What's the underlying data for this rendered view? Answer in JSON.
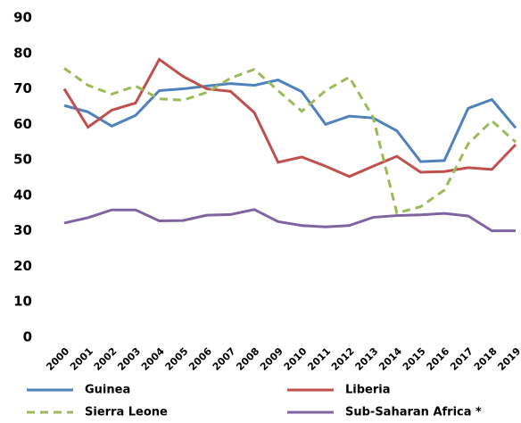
{
  "chart_data": {
    "type": "line",
    "categories": [
      "2000",
      "2001",
      "2002",
      "2003",
      "2004",
      "2005",
      "2006",
      "2007",
      "2008",
      "2009",
      "2010",
      "2011",
      "2012",
      "2013",
      "2014",
      "2015",
      "2016",
      "2017",
      "2018",
      "2019"
    ],
    "series": [
      {
        "name": "Guinea",
        "color": "#4f81bd",
        "dashed": false,
        "values": [
          65.3,
          63.5,
          59.5,
          62.5,
          69.5,
          70,
          70.8,
          71.5,
          71,
          72.5,
          69.2,
          60,
          62.3,
          61.8,
          58.2,
          49.5,
          49.8,
          64.5,
          67,
          59
        ]
      },
      {
        "name": "Liberia",
        "color": "#c0504d",
        "dashed": false,
        "values": [
          70,
          59.2,
          64,
          66,
          78.3,
          73.5,
          70,
          69.3,
          63.3,
          49.3,
          50.8,
          48.2,
          45.3,
          48.2,
          51,
          46.5,
          46.7,
          47.8,
          47.3,
          54.3
        ]
      },
      {
        "name": "Sierra Leone",
        "color": "#9bbb59",
        "dashed": true,
        "values": [
          75.8,
          71,
          68.5,
          70.8,
          67.2,
          66.8,
          69,
          73,
          75.5,
          69.5,
          63.7,
          69.5,
          73.3,
          62,
          35,
          36.8,
          41.5,
          54.5,
          61,
          55
        ]
      },
      {
        "name": "Sub-Saharan Africa *",
        "color": "#8064a2",
        "dashed": false,
        "values": [
          32.2,
          33.7,
          35.9,
          35.9,
          32.8,
          32.9,
          34.4,
          34.6,
          36,
          32.6,
          31.5,
          31.1,
          31.5,
          33.8,
          34.3,
          34.5,
          34.9,
          34.2,
          30,
          30
        ]
      }
    ],
    "ylim": [
      0,
      90
    ],
    "yticks": [
      0,
      10,
      20,
      30,
      40,
      50,
      60,
      70,
      80,
      90
    ],
    "grid": false,
    "legend": "bottom"
  }
}
